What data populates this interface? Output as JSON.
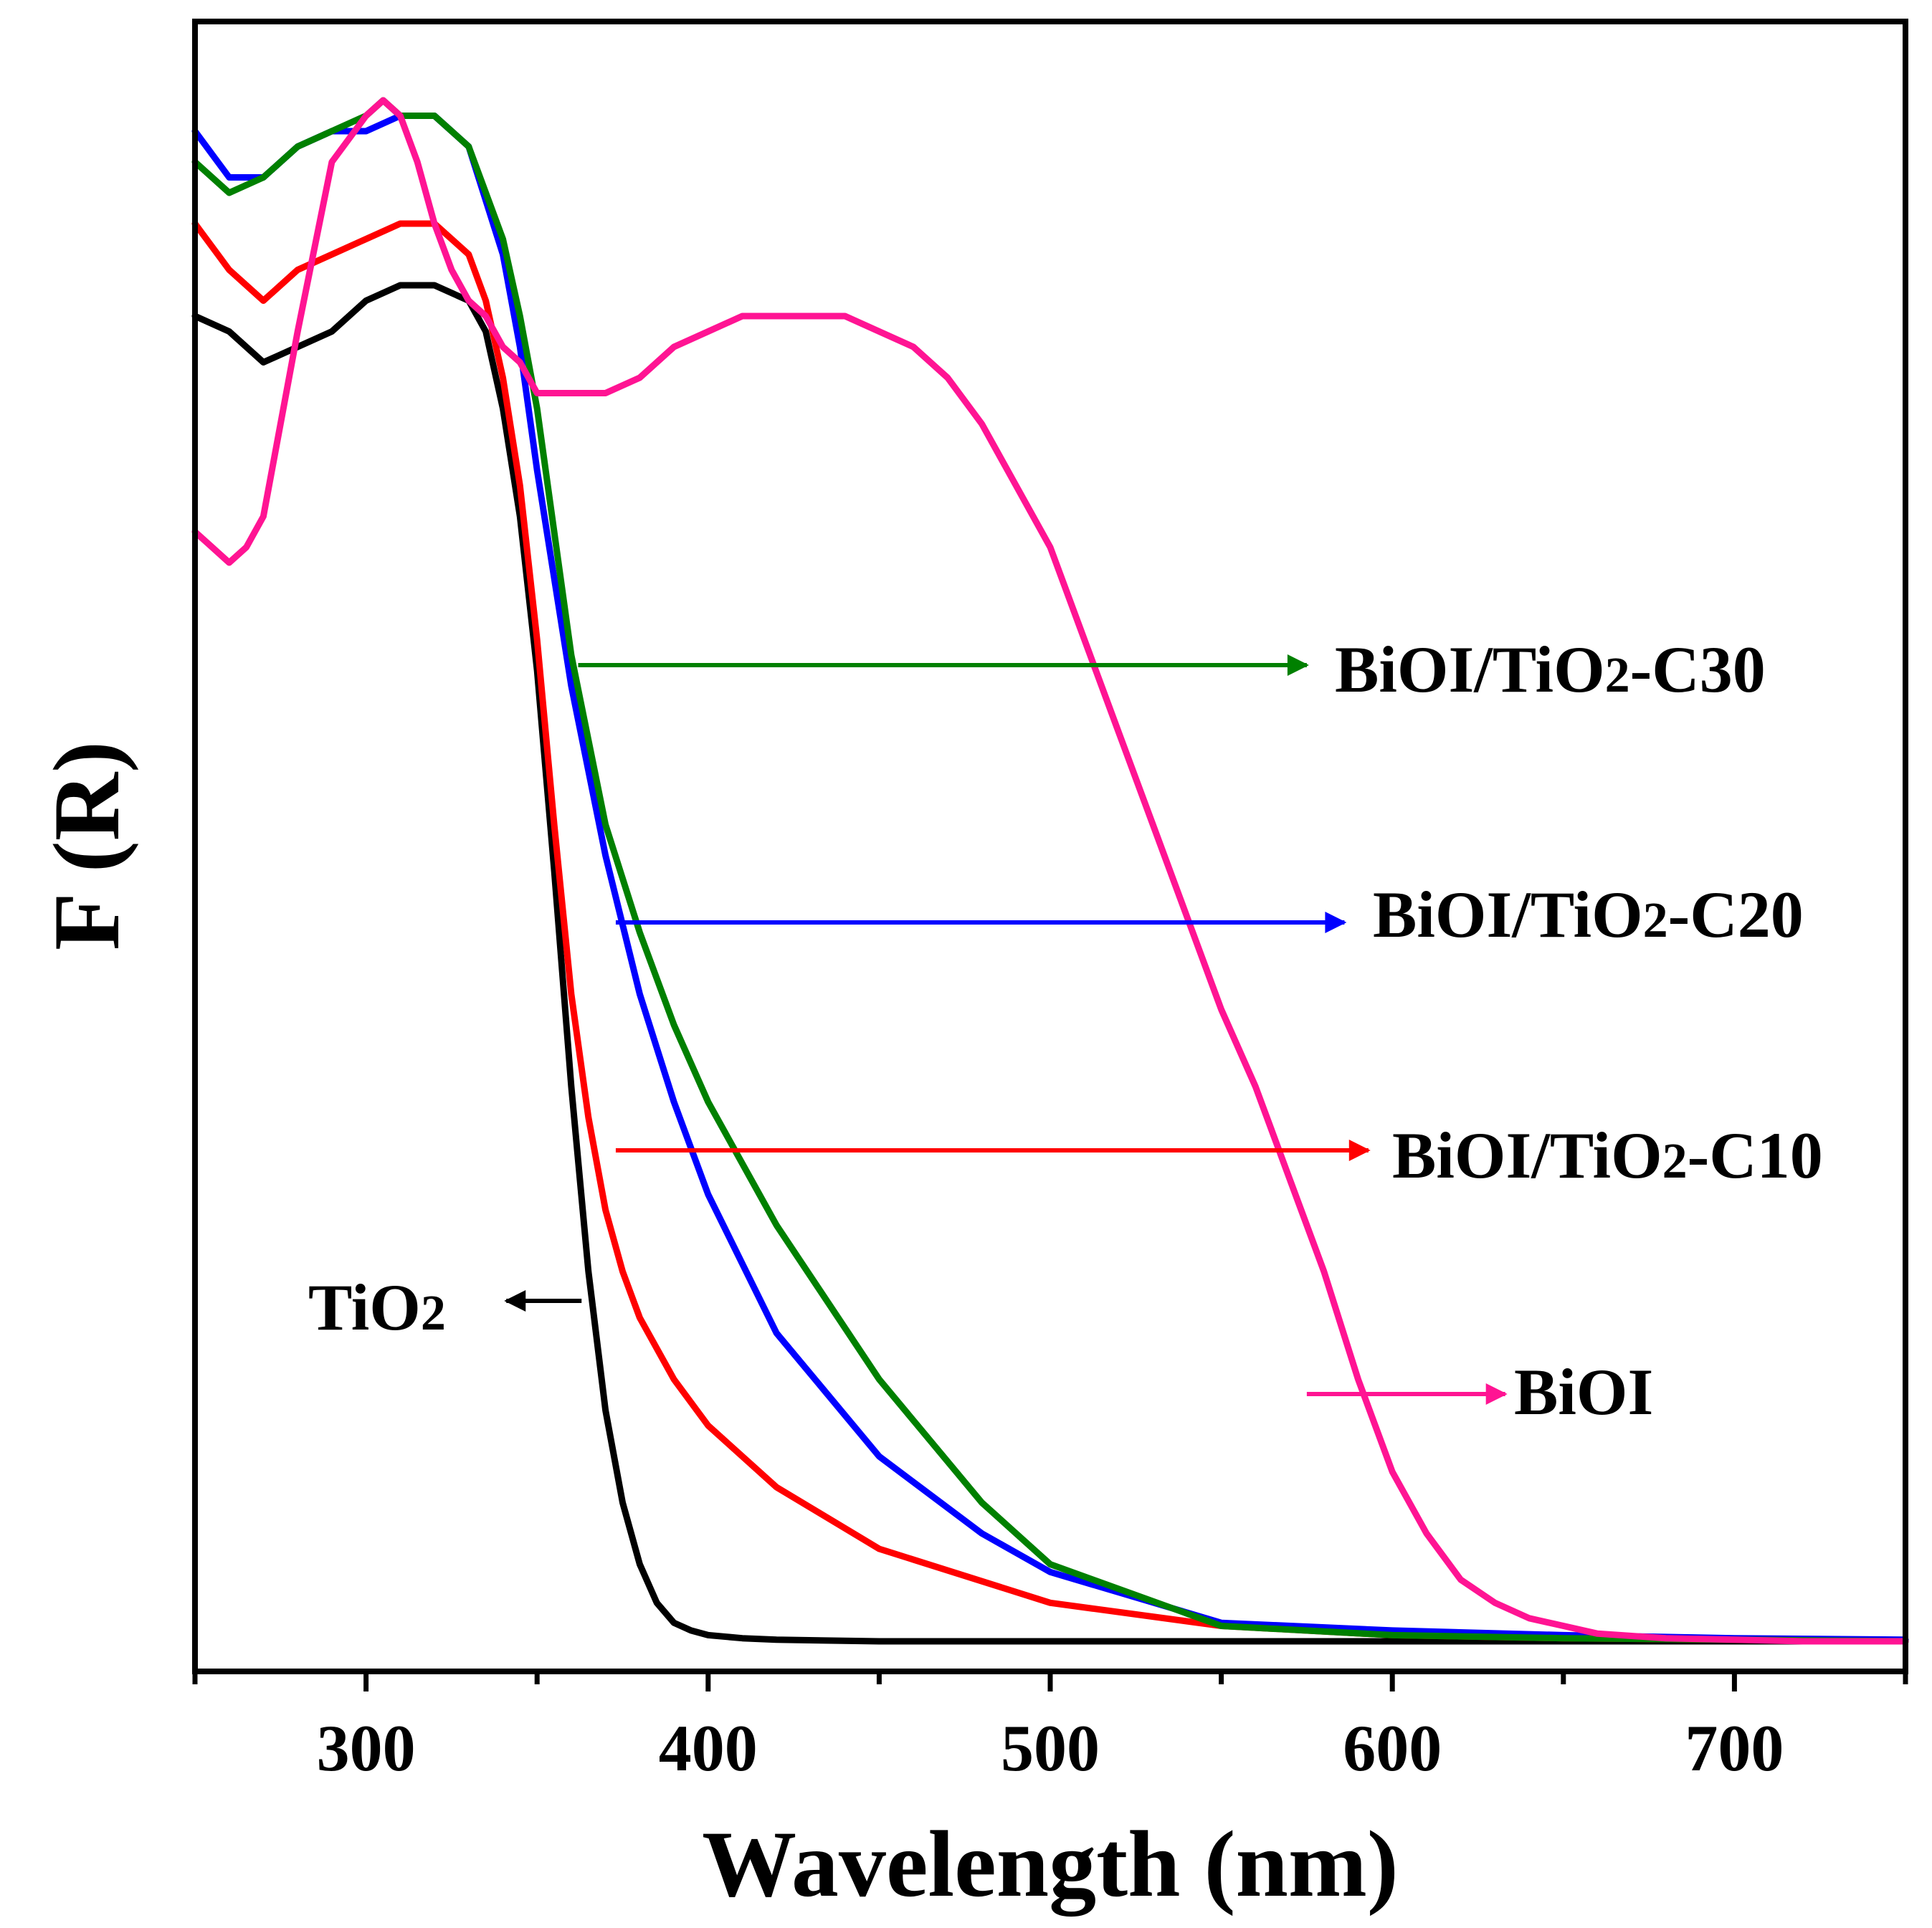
{
  "chart_data": {
    "type": "line",
    "title": "",
    "xlabel": "Wavelength (nm)",
    "ylabel": "F (R)",
    "xlim": [
      250,
      750
    ],
    "ylim": [
      0,
      1.0
    ],
    "xticks": [
      300,
      400,
      500,
      600,
      700
    ],
    "yticks_shown": false,
    "grid": false,
    "series": [
      {
        "name": "TiO2",
        "color": "#000000",
        "x": [
          250,
          260,
          270,
          280,
          290,
          300,
          310,
          320,
          330,
          335,
          340,
          345,
          350,
          355,
          360,
          365,
          370,
          375,
          380,
          385,
          390,
          395,
          400,
          410,
          420,
          450,
          500,
          550,
          600,
          650,
          700,
          750
        ],
        "y": [
          0.86,
          0.85,
          0.83,
          0.84,
          0.85,
          0.87,
          0.88,
          0.88,
          0.87,
          0.85,
          0.8,
          0.73,
          0.63,
          0.5,
          0.36,
          0.24,
          0.15,
          0.09,
          0.05,
          0.025,
          0.012,
          0.007,
          0.004,
          0.002,
          0.001,
          0.0,
          0.0,
          0.0,
          0.0,
          0.0,
          0.0,
          0.0
        ]
      },
      {
        "name": "BiOI/TiO2-C10",
        "color": "#ff0000",
        "x": [
          250,
          260,
          270,
          280,
          290,
          300,
          310,
          320,
          330,
          335,
          340,
          345,
          350,
          355,
          360,
          365,
          370,
          375,
          380,
          390,
          400,
          420,
          450,
          500,
          550,
          600,
          650,
          700,
          750
        ],
        "y": [
          0.92,
          0.89,
          0.87,
          0.89,
          0.9,
          0.91,
          0.92,
          0.92,
          0.9,
          0.87,
          0.82,
          0.75,
          0.65,
          0.53,
          0.42,
          0.34,
          0.28,
          0.24,
          0.21,
          0.17,
          0.14,
          0.1,
          0.06,
          0.025,
          0.01,
          0.004,
          0.002,
          0.001,
          0.0
        ]
      },
      {
        "name": "BiOI/TiO2-C20",
        "color": "#0000ff",
        "x": [
          250,
          260,
          270,
          280,
          290,
          300,
          310,
          320,
          330,
          340,
          345,
          350,
          360,
          370,
          380,
          390,
          400,
          420,
          450,
          480,
          500,
          550,
          600,
          650,
          700,
          750
        ],
        "y": [
          0.98,
          0.95,
          0.95,
          0.97,
          0.98,
          0.98,
          0.99,
          0.99,
          0.97,
          0.9,
          0.84,
          0.76,
          0.62,
          0.51,
          0.42,
          0.35,
          0.29,
          0.2,
          0.12,
          0.07,
          0.045,
          0.012,
          0.007,
          0.004,
          0.002,
          0.001
        ]
      },
      {
        "name": "BiOI/TiO2-C30",
        "color": "#008000",
        "x": [
          250,
          260,
          270,
          280,
          290,
          300,
          305,
          310,
          320,
          330,
          340,
          345,
          350,
          360,
          370,
          380,
          390,
          400,
          420,
          450,
          480,
          500,
          550,
          600,
          650,
          700,
          750
        ],
        "y": [
          0.96,
          0.94,
          0.95,
          0.97,
          0.98,
          0.99,
          1.0,
          0.99,
          0.99,
          0.97,
          0.91,
          0.86,
          0.8,
          0.64,
          0.53,
          0.46,
          0.4,
          0.35,
          0.27,
          0.17,
          0.09,
          0.05,
          0.01,
          0.004,
          0.002,
          0.001,
          0.0
        ]
      },
      {
        "name": "BiOI",
        "color": "#ff1493",
        "x": [
          250,
          255,
          260,
          265,
          270,
          280,
          290,
          300,
          305,
          310,
          315,
          320,
          325,
          330,
          335,
          340,
          345,
          350,
          360,
          370,
          380,
          390,
          400,
          410,
          420,
          430,
          440,
          450,
          460,
          470,
          480,
          490,
          500,
          510,
          520,
          530,
          540,
          550,
          560,
          570,
          580,
          590,
          600,
          610,
          620,
          630,
          640,
          650,
          660,
          680,
          700,
          720,
          750
        ],
        "y": [
          0.72,
          0.71,
          0.7,
          0.71,
          0.73,
          0.85,
          0.96,
          0.99,
          1.0,
          0.99,
          0.96,
          0.92,
          0.89,
          0.87,
          0.86,
          0.84,
          0.83,
          0.81,
          0.81,
          0.81,
          0.82,
          0.84,
          0.85,
          0.86,
          0.86,
          0.86,
          0.86,
          0.85,
          0.84,
          0.82,
          0.79,
          0.75,
          0.71,
          0.65,
          0.59,
          0.53,
          0.47,
          0.41,
          0.36,
          0.3,
          0.24,
          0.17,
          0.11,
          0.07,
          0.04,
          0.025,
          0.015,
          0.01,
          0.005,
          0.002,
          0.001,
          0.0,
          0.0
        ]
      }
    ],
    "annotations": [
      {
        "label": "BiOI/TiO",
        "sub": "2",
        "tail": "-C30",
        "series": "BiOI/TiO2-C30",
        "arrow_from_x": 362,
        "arrow_to_x": 575,
        "y": 0.564,
        "direction": "right"
      },
      {
        "label": "BiOI/TiO",
        "sub": "2",
        "tail": "-C20",
        "series": "BiOI/TiO2-C20",
        "arrow_from_x": 373,
        "arrow_to_x": 586,
        "y": 0.382,
        "direction": "right"
      },
      {
        "label": "BiOI/TiO",
        "sub": "2",
        "tail": "-C10",
        "series": "BiOI/TiO2-C10",
        "arrow_from_x": 373,
        "arrow_to_x": 593,
        "y": 0.219,
        "direction": "right"
      },
      {
        "label": "TiO",
        "sub": "2",
        "tail": "",
        "series": "TiO2",
        "arrow_from_x": 363,
        "arrow_to_x": 341,
        "y": 0.0,
        "direction": "left"
      },
      {
        "label": "BiOI",
        "sub": "",
        "tail": "",
        "series": "BiOI",
        "arrow_from_x": 575,
        "arrow_to_x": 633,
        "y": 0.0,
        "direction": "right"
      }
    ]
  }
}
